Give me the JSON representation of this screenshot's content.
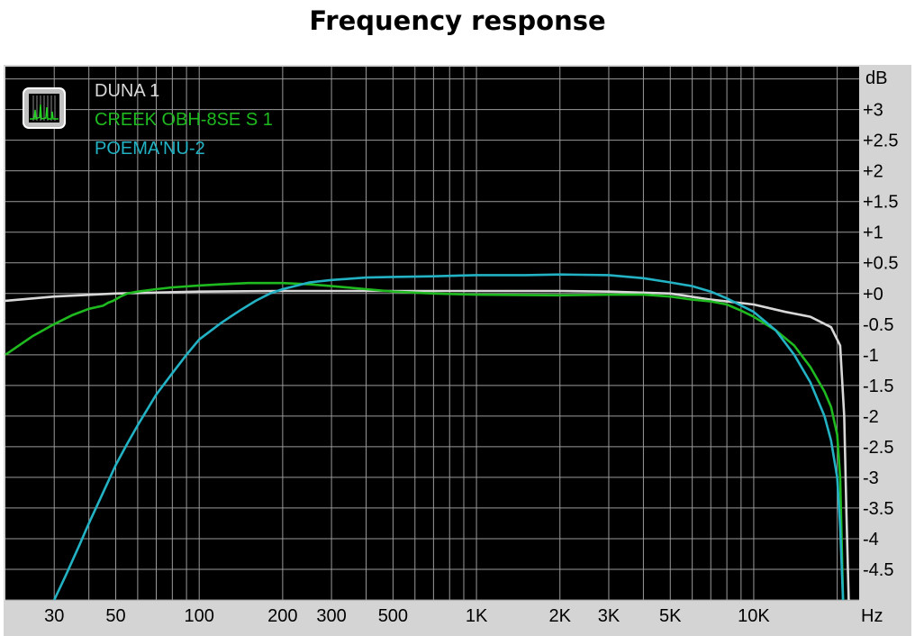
{
  "title": "Frequency response",
  "chart_data": {
    "type": "line",
    "title": "Frequency response",
    "xlabel": "Hz",
    "ylabel": "dB",
    "xscale": "log",
    "xlim": [
      20,
      24000
    ],
    "ylim": [
      -5,
      3.7
    ],
    "grid": true,
    "legend_position": "top-left",
    "background": "#000000",
    "x_ticks": [
      {
        "value": 30,
        "label": "30"
      },
      {
        "value": 50,
        "label": "50"
      },
      {
        "value": 100,
        "label": "100"
      },
      {
        "value": 200,
        "label": "200"
      },
      {
        "value": 300,
        "label": "300"
      },
      {
        "value": 500,
        "label": "500"
      },
      {
        "value": 1000,
        "label": "1K"
      },
      {
        "value": 2000,
        "label": "2K"
      },
      {
        "value": 3000,
        "label": "3K"
      },
      {
        "value": 5000,
        "label": "5K"
      },
      {
        "value": 10000,
        "label": "10K"
      }
    ],
    "y_ticks": [
      {
        "value": 3,
        "label": "+3"
      },
      {
        "value": 2.5,
        "label": "+2.5"
      },
      {
        "value": 2,
        "label": "+2"
      },
      {
        "value": 1.5,
        "label": "+1.5"
      },
      {
        "value": 1,
        "label": "+1"
      },
      {
        "value": 0.5,
        "label": "+0.5"
      },
      {
        "value": 0,
        "label": "+0"
      },
      {
        "value": -0.5,
        "label": "-0.5"
      },
      {
        "value": -1,
        "label": "-1"
      },
      {
        "value": -1.5,
        "label": "-1.5"
      },
      {
        "value": -2,
        "label": "-2"
      },
      {
        "value": -2.5,
        "label": "-2.5"
      },
      {
        "value": -3,
        "label": "-3"
      },
      {
        "value": -3.5,
        "label": "-3.5"
      },
      {
        "value": -4,
        "label": "-4"
      },
      {
        "value": -4.5,
        "label": "-4.5"
      }
    ],
    "series": [
      {
        "name": "DUNA 1",
        "color": "#d8d8d8",
        "points": [
          [
            20,
            -0.12
          ],
          [
            30,
            -0.05
          ],
          [
            50,
            0.0
          ],
          [
            100,
            0.03
          ],
          [
            200,
            0.04
          ],
          [
            500,
            0.04
          ],
          [
            1000,
            0.04
          ],
          [
            2000,
            0.04
          ],
          [
            3000,
            0.03
          ],
          [
            5000,
            0.0
          ],
          [
            7000,
            -0.1
          ],
          [
            10000,
            -0.18
          ],
          [
            13000,
            -0.3
          ],
          [
            16000,
            -0.38
          ],
          [
            19000,
            -0.55
          ],
          [
            20500,
            -0.85
          ],
          [
            21200,
            -2.0
          ],
          [
            21600,
            -3.6
          ],
          [
            22000,
            -5.0
          ]
        ]
      },
      {
        "name": "CREEK OBH-8SE S 1",
        "color": "#1fba1f",
        "points": [
          [
            20,
            -1.0
          ],
          [
            25,
            -0.7
          ],
          [
            30,
            -0.5
          ],
          [
            35,
            -0.35
          ],
          [
            40,
            -0.25
          ],
          [
            45,
            -0.2
          ],
          [
            47,
            -0.15
          ],
          [
            49,
            -0.12
          ],
          [
            52,
            -0.05
          ],
          [
            55,
            0.0
          ],
          [
            60,
            0.03
          ],
          [
            70,
            0.07
          ],
          [
            80,
            0.1
          ],
          [
            100,
            0.13
          ],
          [
            120,
            0.15
          ],
          [
            150,
            0.17
          ],
          [
            200,
            0.17
          ],
          [
            250,
            0.15
          ],
          [
            300,
            0.12
          ],
          [
            400,
            0.07
          ],
          [
            500,
            0.03
          ],
          [
            700,
            0.0
          ],
          [
            1000,
            -0.02
          ],
          [
            2000,
            -0.03
          ],
          [
            3000,
            -0.02
          ],
          [
            4000,
            -0.02
          ],
          [
            5000,
            -0.05
          ],
          [
            6000,
            -0.1
          ],
          [
            7000,
            -0.13
          ],
          [
            8000,
            -0.18
          ],
          [
            9000,
            -0.28
          ],
          [
            10000,
            -0.38
          ],
          [
            12000,
            -0.6
          ],
          [
            14000,
            -0.85
          ],
          [
            16000,
            -1.2
          ],
          [
            18000,
            -1.6
          ],
          [
            19000,
            -1.85
          ],
          [
            20000,
            -2.3
          ],
          [
            20500,
            -3.0
          ],
          [
            21000,
            -5.0
          ]
        ]
      },
      {
        "name": "POEMA'NU-2",
        "color": "#22b2c4",
        "points": [
          [
            30,
            -5.0
          ],
          [
            33,
            -4.6
          ],
          [
            37,
            -4.1
          ],
          [
            40,
            -3.75
          ],
          [
            45,
            -3.25
          ],
          [
            50,
            -2.8
          ],
          [
            55,
            -2.45
          ],
          [
            60,
            -2.15
          ],
          [
            70,
            -1.65
          ],
          [
            80,
            -1.3
          ],
          [
            90,
            -1.0
          ],
          [
            100,
            -0.75
          ],
          [
            120,
            -0.48
          ],
          [
            140,
            -0.28
          ],
          [
            160,
            -0.12
          ],
          [
            180,
            0.0
          ],
          [
            200,
            0.07
          ],
          [
            250,
            0.18
          ],
          [
            300,
            0.22
          ],
          [
            400,
            0.26
          ],
          [
            500,
            0.27
          ],
          [
            700,
            0.28
          ],
          [
            1000,
            0.3
          ],
          [
            1500,
            0.3
          ],
          [
            2000,
            0.31
          ],
          [
            3000,
            0.3
          ],
          [
            4000,
            0.25
          ],
          [
            5000,
            0.18
          ],
          [
            6000,
            0.12
          ],
          [
            7000,
            0.03
          ],
          [
            8000,
            -0.08
          ],
          [
            10000,
            -0.3
          ],
          [
            12000,
            -0.6
          ],
          [
            14000,
            -1.0
          ],
          [
            16000,
            -1.45
          ],
          [
            18000,
            -2.0
          ],
          [
            19000,
            -2.4
          ],
          [
            20000,
            -3.0
          ],
          [
            20500,
            -3.8
          ],
          [
            21000,
            -5.0
          ]
        ]
      }
    ]
  }
}
